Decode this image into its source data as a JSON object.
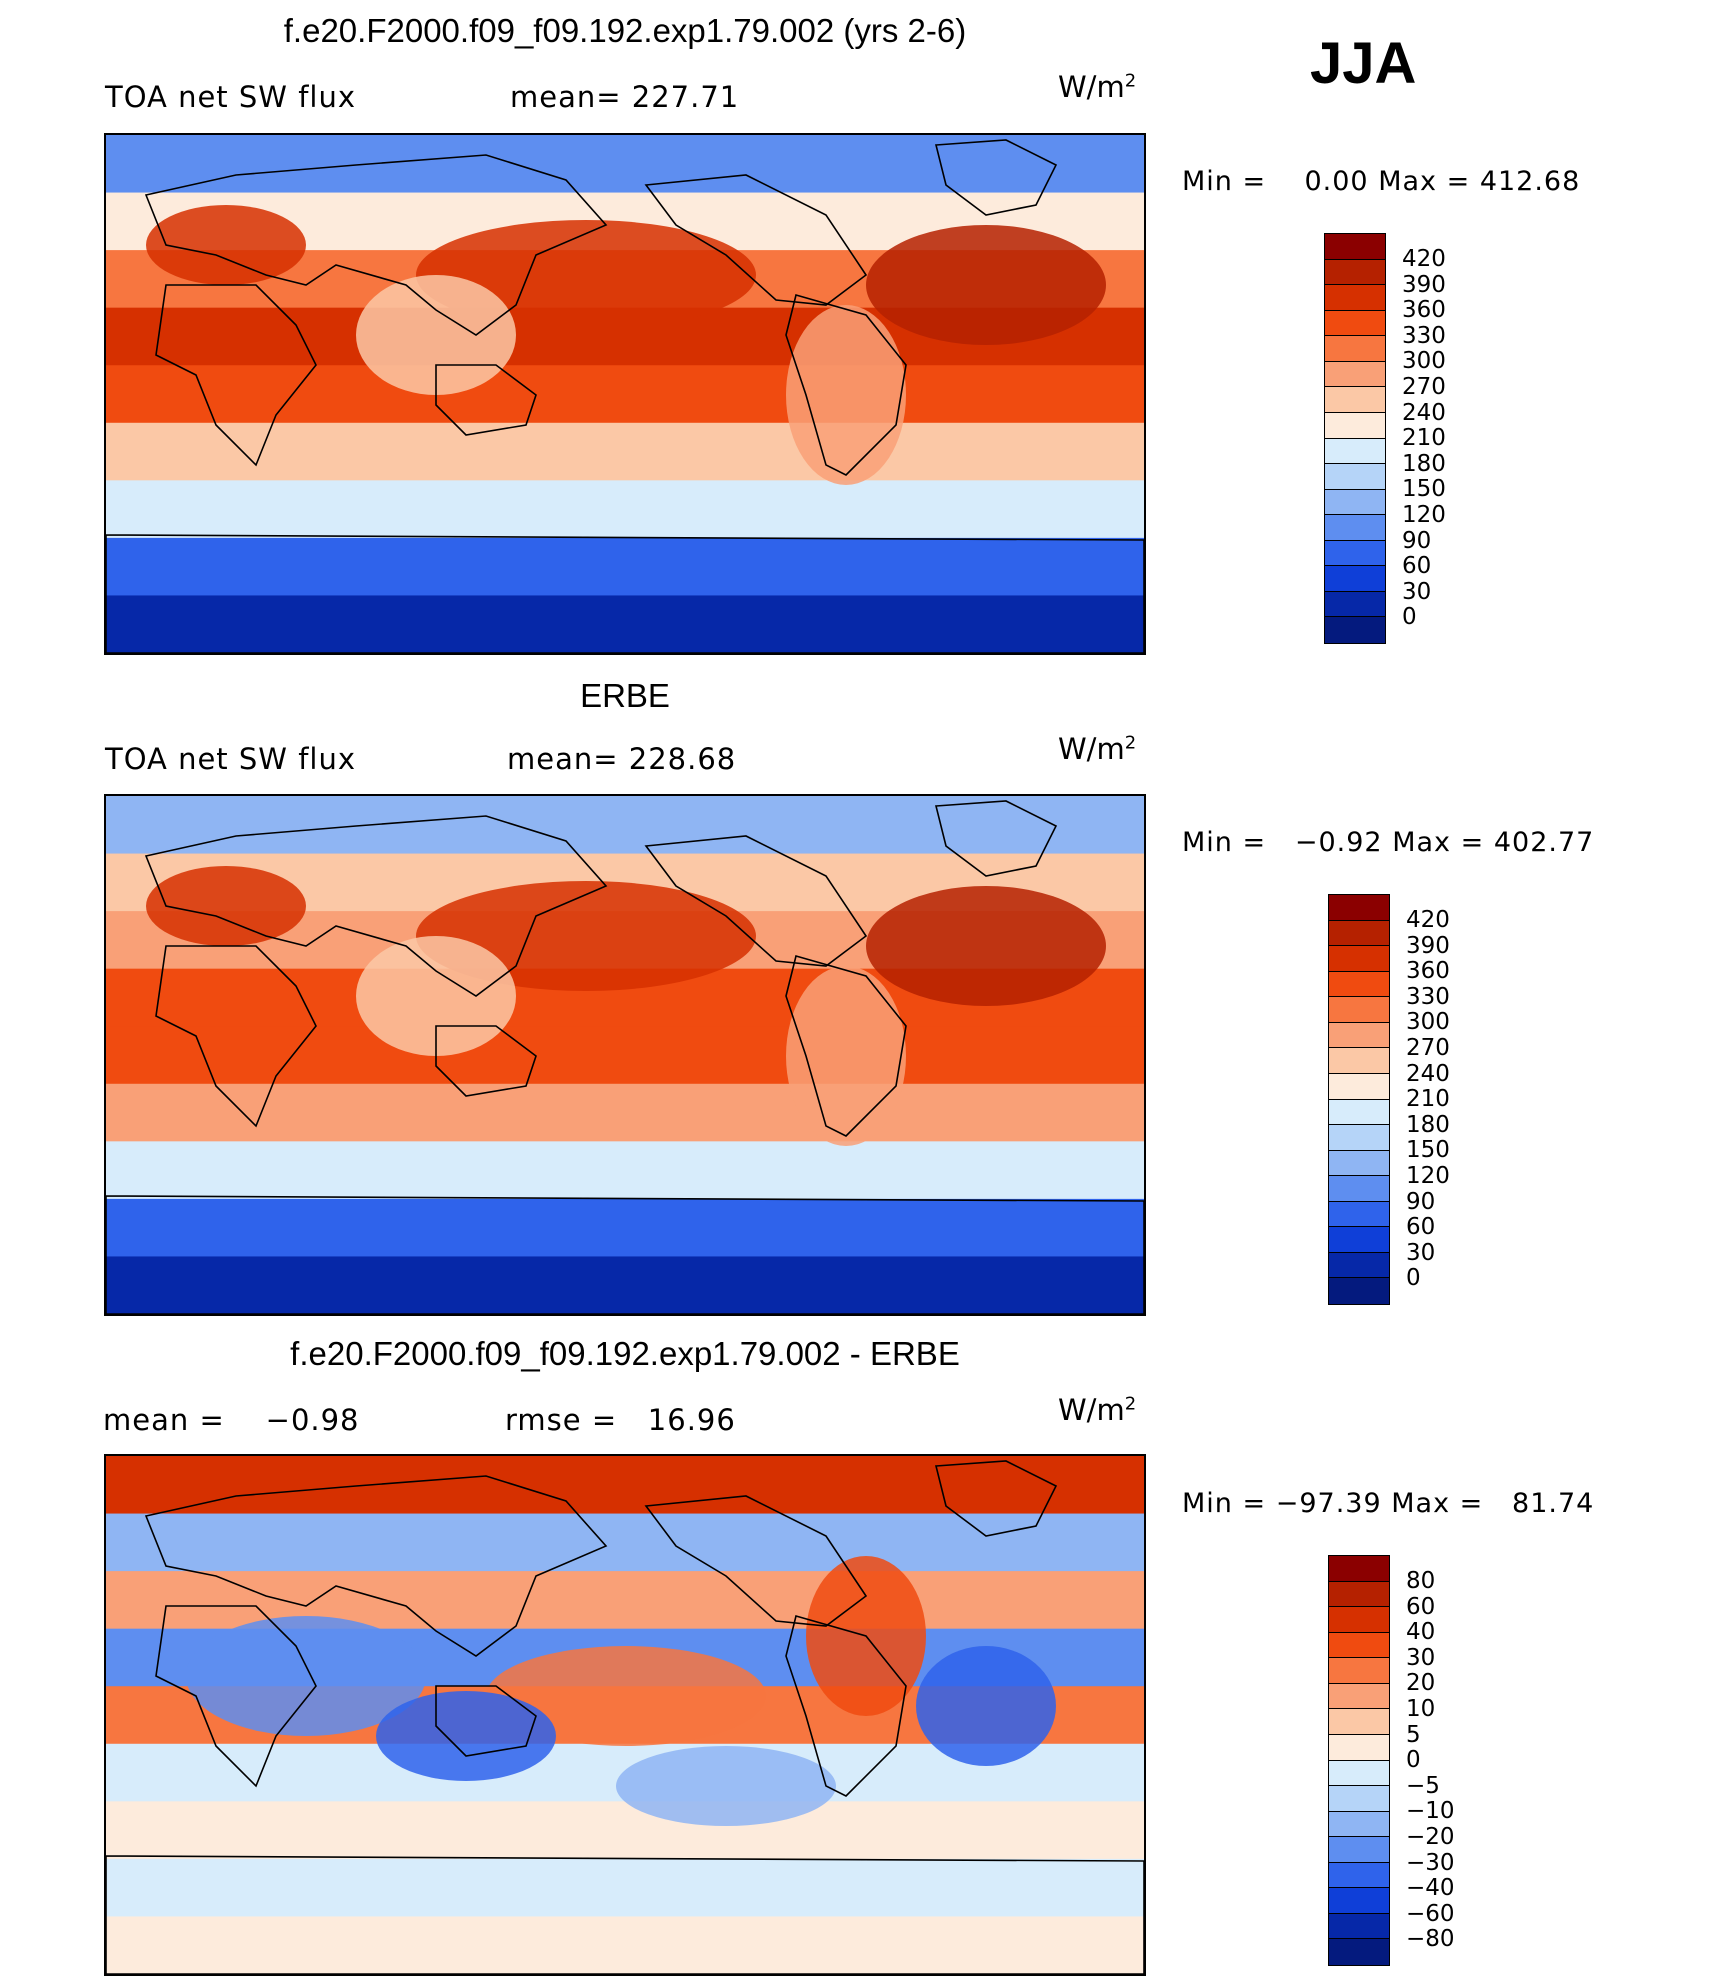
{
  "season": "JJA",
  "panels": [
    {
      "title": "f.e20.F2000.f09_f09.192.exp1.79.002 (yrs 2-6)",
      "left_label": "TOA net SW flux",
      "mid_label": "mean= 227.71",
      "units_base": "W/m",
      "units_exp": "2",
      "min_label": "Min =",
      "min_value": "0.00",
      "max_label": "Max =",
      "max_value": "412.68",
      "levels": [
        "420",
        "390",
        "360",
        "330",
        "300",
        "270",
        "240",
        "210",
        "180",
        "150",
        "120",
        "90",
        "60",
        "30",
        "0"
      ],
      "colors": [
        "#8b0000",
        "#b52100",
        "#d63000",
        "#f04b10",
        "#f77640",
        "#f9a077",
        "#fbc8a6",
        "#fdebdc",
        "#d7ecfb",
        "#b5d4f8",
        "#8fb5f3",
        "#5e8ef0",
        "#2f63eb",
        "#0f3fd8",
        "#0628a8",
        "#041a7e"
      ],
      "band_values": [
        110,
        230,
        300,
        360,
        330,
        260,
        200,
        60,
        8
      ]
    },
    {
      "title": "ERBE",
      "left_label": "TOA net SW flux",
      "mid_label": "mean= 228.68",
      "units_base": "W/m",
      "units_exp": "2",
      "min_label": "Min =",
      "min_value": "−0.92",
      "max_label": "Max =",
      "max_value": "402.77",
      "levels": [
        "420",
        "390",
        "360",
        "330",
        "300",
        "270",
        "240",
        "210",
        "180",
        "150",
        "120",
        "90",
        "60",
        "30",
        "0"
      ],
      "colors": [
        "#8b0000",
        "#b52100",
        "#d63000",
        "#f04b10",
        "#f77640",
        "#f9a077",
        "#fbc8a6",
        "#fdebdc",
        "#d7ecfb",
        "#b5d4f8",
        "#8fb5f3",
        "#5e8ef0",
        "#2f63eb",
        "#0f3fd8",
        "#0628a8",
        "#041a7e"
      ],
      "band_values": [
        140,
        250,
        290,
        350,
        340,
        270,
        200,
        60,
        5
      ]
    },
    {
      "title": "f.e20.F2000.f09_f09.192.exp1.79.002 - ERBE",
      "left_label": "mean =",
      "left_value": "−0.98",
      "mid_label": "rmse =",
      "mid_value": "16.96",
      "units_base": "W/m",
      "units_exp": "2",
      "min_label": "Min =",
      "min_value": "−97.39",
      "max_label": "Max =",
      "max_value": "81.74",
      "levels": [
        "80",
        "60",
        "40",
        "30",
        "20",
        "10",
        "5",
        "0",
        "−5",
        "−10",
        "−20",
        "−30",
        "−40",
        "−60",
        "−80"
      ],
      "colors": [
        "#8b0000",
        "#b52100",
        "#d63000",
        "#f04b10",
        "#f77640",
        "#f9a077",
        "#fbc8a6",
        "#fdebdc",
        "#d7ecfb",
        "#b5d4f8",
        "#8fb5f3",
        "#5e8ef0",
        "#2f63eb",
        "#0f3fd8",
        "#0628a8",
        "#041a7e"
      ],
      "band_values": [
        40,
        -20,
        15,
        -25,
        20,
        -5,
        2,
        -3,
        1
      ]
    }
  ]
}
